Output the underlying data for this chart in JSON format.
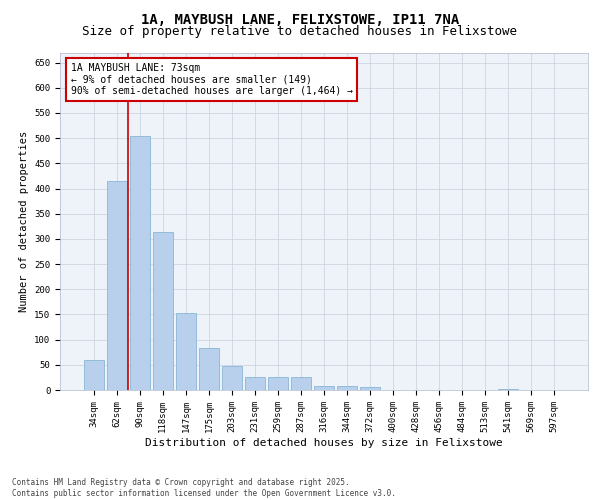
{
  "title": "1A, MAYBUSH LANE, FELIXSTOWE, IP11 7NA",
  "subtitle": "Size of property relative to detached houses in Felixstowe",
  "xlabel": "Distribution of detached houses by size in Felixstowe",
  "ylabel": "Number of detached properties",
  "categories": [
    "34sqm",
    "62sqm",
    "90sqm",
    "118sqm",
    "147sqm",
    "175sqm",
    "203sqm",
    "231sqm",
    "259sqm",
    "287sqm",
    "316sqm",
    "344sqm",
    "372sqm",
    "400sqm",
    "428sqm",
    "456sqm",
    "484sqm",
    "513sqm",
    "541sqm",
    "569sqm",
    "597sqm"
  ],
  "values": [
    60,
    415,
    505,
    313,
    152,
    83,
    47,
    25,
    25,
    25,
    8,
    8,
    6,
    0,
    0,
    0,
    0,
    0,
    2,
    0,
    0
  ],
  "bar_color": "#b8d0eb",
  "bar_edge_color": "#7aafd4",
  "marker_line_color": "#cc0000",
  "annotation_text": "1A MAYBUSH LANE: 73sqm\n← 9% of detached houses are smaller (149)\n90% of semi-detached houses are larger (1,464) →",
  "annotation_box_color": "#ffffff",
  "annotation_box_edge": "#cc0000",
  "ylim": [
    0,
    670
  ],
  "yticks": [
    0,
    50,
    100,
    150,
    200,
    250,
    300,
    350,
    400,
    450,
    500,
    550,
    600,
    650
  ],
  "background_color": "#eef2f9",
  "footer": "Contains HM Land Registry data © Crown copyright and database right 2025.\nContains public sector information licensed under the Open Government Licence v3.0.",
  "title_fontsize": 10,
  "subtitle_fontsize": 9,
  "xlabel_fontsize": 8,
  "ylabel_fontsize": 7.5,
  "tick_fontsize": 6.5,
  "annotation_fontsize": 7,
  "footer_fontsize": 5.5
}
